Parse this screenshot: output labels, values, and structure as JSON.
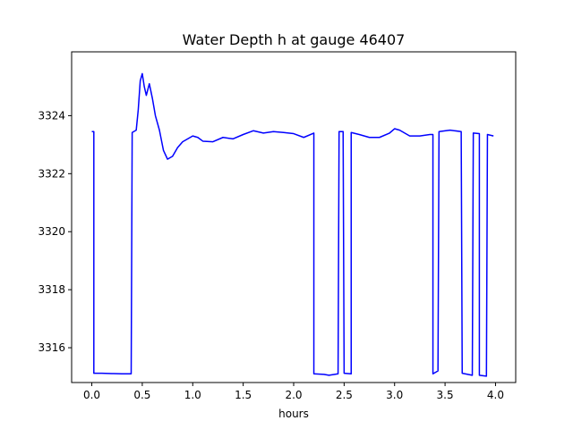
{
  "chart_data": {
    "type": "line",
    "title": "Water Depth h at gauge 46407",
    "xlabel": "hours",
    "ylabel": "",
    "xlim": [
      -0.2,
      4.2
    ],
    "ylim": [
      3314.8,
      3326.2
    ],
    "xticks": [
      0.0,
      0.5,
      1.0,
      1.5,
      2.0,
      2.5,
      3.0,
      3.5,
      4.0
    ],
    "xtick_labels": [
      "0.0",
      "0.5",
      "1.0",
      "1.5",
      "2.0",
      "2.5",
      "3.0",
      "3.5",
      "4.0"
    ],
    "yticks": [
      3316,
      3318,
      3320,
      3322,
      3324
    ],
    "ytick_labels": [
      "3316",
      "3318",
      "3320",
      "3322",
      "3324"
    ],
    "grid": false,
    "series": [
      {
        "color": "#0000ff",
        "points": [
          [
            0.0,
            3323.45
          ],
          [
            0.02,
            3323.45
          ],
          [
            0.02,
            3315.12
          ],
          [
            0.1,
            3315.12
          ],
          [
            0.2,
            3315.11
          ],
          [
            0.3,
            3315.1
          ],
          [
            0.39,
            3315.1
          ],
          [
            0.4,
            3323.42
          ],
          [
            0.44,
            3323.5
          ],
          [
            0.46,
            3324.2
          ],
          [
            0.48,
            3325.2
          ],
          [
            0.5,
            3325.45
          ],
          [
            0.52,
            3325.0
          ],
          [
            0.54,
            3324.7
          ],
          [
            0.57,
            3325.1
          ],
          [
            0.6,
            3324.6
          ],
          [
            0.63,
            3324.0
          ],
          [
            0.67,
            3323.5
          ],
          [
            0.71,
            3322.8
          ],
          [
            0.75,
            3322.5
          ],
          [
            0.8,
            3322.6
          ],
          [
            0.85,
            3322.9
          ],
          [
            0.9,
            3323.1
          ],
          [
            1.0,
            3323.3
          ],
          [
            1.05,
            3323.25
          ],
          [
            1.1,
            3323.12
          ],
          [
            1.2,
            3323.1
          ],
          [
            1.3,
            3323.25
          ],
          [
            1.4,
            3323.2
          ],
          [
            1.5,
            3323.35
          ],
          [
            1.6,
            3323.48
          ],
          [
            1.7,
            3323.4
          ],
          [
            1.8,
            3323.45
          ],
          [
            1.9,
            3323.42
          ],
          [
            2.0,
            3323.38
          ],
          [
            2.1,
            3323.25
          ],
          [
            2.2,
            3323.4
          ],
          [
            2.2,
            3315.1
          ],
          [
            2.3,
            3315.08
          ],
          [
            2.35,
            3315.05
          ],
          [
            2.44,
            3315.1
          ],
          [
            2.45,
            3323.45
          ],
          [
            2.49,
            3323.45
          ],
          [
            2.5,
            3315.12
          ],
          [
            2.57,
            3315.1
          ],
          [
            2.57,
            3323.42
          ],
          [
            2.65,
            3323.35
          ],
          [
            2.75,
            3323.25
          ],
          [
            2.85,
            3323.25
          ],
          [
            2.95,
            3323.4
          ],
          [
            3.0,
            3323.55
          ],
          [
            3.05,
            3323.5
          ],
          [
            3.15,
            3323.3
          ],
          [
            3.25,
            3323.3
          ],
          [
            3.35,
            3323.35
          ],
          [
            3.38,
            3323.35
          ],
          [
            3.38,
            3315.1
          ],
          [
            3.43,
            3315.2
          ],
          [
            3.44,
            3323.45
          ],
          [
            3.55,
            3323.5
          ],
          [
            3.66,
            3323.45
          ],
          [
            3.67,
            3315.12
          ],
          [
            3.77,
            3315.05
          ],
          [
            3.78,
            3323.4
          ],
          [
            3.84,
            3323.38
          ],
          [
            3.84,
            3315.05
          ],
          [
            3.91,
            3315.02
          ],
          [
            3.92,
            3323.35
          ],
          [
            3.98,
            3323.3
          ]
        ]
      }
    ]
  }
}
